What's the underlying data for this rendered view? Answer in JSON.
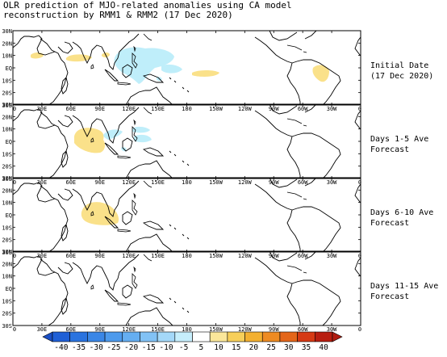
{
  "title": {
    "line1": "OLR prediction of MJO-related anomalies using CA model",
    "line2": "reconstruction by RMM1 & RMM2 (17 Dec 2020)"
  },
  "lat_labels": [
    "30N",
    "20N",
    "10N",
    "EQ",
    "10S",
    "20S",
    "30S"
  ],
  "lon_labels": [
    "0",
    "30E",
    "60E",
    "90E",
    "120E",
    "150E",
    "180",
    "150W",
    "120W",
    "90W",
    "60W",
    "30W",
    "0"
  ],
  "panels": [
    {
      "label_line1": "Initial Date",
      "label_line2": "(17 Dec 2020)"
    },
    {
      "label_line1": "Days 1-5 Ave",
      "label_line2": "Forecast"
    },
    {
      "label_line1": "Days 6-10 Ave",
      "label_line2": "Forecast"
    },
    {
      "label_line1": "Days 11-15 Ave",
      "label_line2": "Forecast"
    }
  ],
  "colorbar": {
    "labels": [
      "-40",
      "-35",
      "-30",
      "-25",
      "-20",
      "-15",
      "-10",
      "-5",
      "5",
      "10",
      "15",
      "20",
      "25",
      "30",
      "35",
      "40"
    ],
    "colors": [
      "#1f5fd6",
      "#2a73df",
      "#3a86e6",
      "#4d9aec",
      "#65aef1",
      "#82c2f5",
      "#a4d8f9",
      "#c6eefc",
      "#ffffff",
      "#fbe79a",
      "#f7cf5a",
      "#f3b030",
      "#ee8b22",
      "#e4661a",
      "#d63a14",
      "#b81e10"
    ],
    "low_end_color": "#1b4fc4",
    "high_end_color": "#b01c10"
  },
  "colors": {
    "negative_anomaly": "#bfeefa",
    "positive_anomaly": "#fae18a",
    "coast": "#000000"
  }
}
